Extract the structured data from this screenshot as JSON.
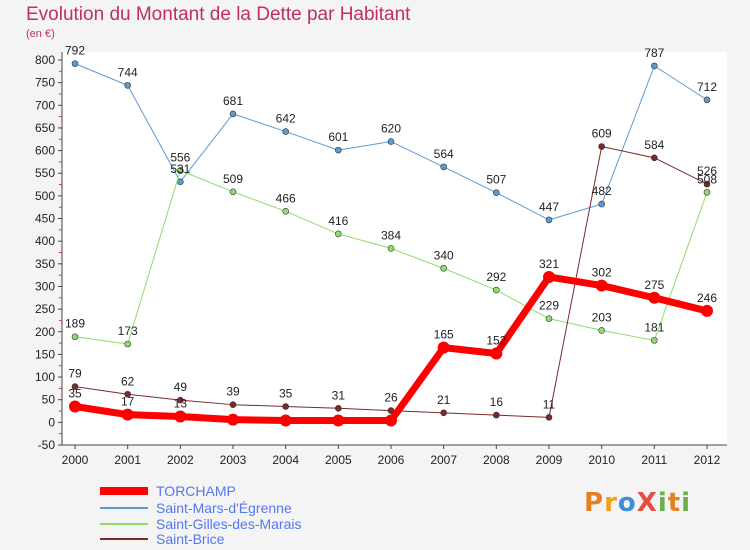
{
  "title": "Evolution du Montant de la Dette par Habitant",
  "unit_label": "(en €)",
  "brand": {
    "text": "ProXiti",
    "letters": [
      "P",
      "r",
      "o",
      "X",
      "i",
      "t",
      "i"
    ],
    "letter_colors": [
      "#e67e22",
      "#f0a020",
      "#3a8fd8",
      "#e74c3c",
      "#6ab04c",
      "#e67e22",
      "#6ab04c"
    ]
  },
  "chart_data": {
    "type": "line",
    "title": "Evolution du Montant de la Dette par Habitant",
    "ylabel": "(en €)",
    "xlabel": "",
    "x": [
      "2000",
      "2001",
      "2002",
      "2003",
      "2004",
      "2005",
      "2006",
      "2007",
      "2008",
      "2009",
      "2010",
      "2011",
      "2012"
    ],
    "ylim": [
      -50,
      800
    ],
    "yticks": [
      -50,
      0,
      50,
      100,
      150,
      200,
      250,
      300,
      350,
      400,
      450,
      500,
      550,
      600,
      650,
      700,
      750,
      800
    ],
    "grid": false,
    "legend": "bottom-left",
    "series": [
      {
        "name": "TORCHAMP",
        "values": [
          35,
          17,
          13,
          6,
          4,
          4,
          4,
          165,
          152,
          321,
          302,
          275,
          246
        ],
        "labels": [
          "35",
          "17",
          "13",
          "",
          "",
          "",
          "",
          "165",
          "152",
          "321",
          "302",
          "275",
          "246"
        ],
        "color": "#ff0000",
        "width": 7
      },
      {
        "name": "Saint-Mars-d'Égrenne",
        "values": [
          792,
          744,
          531,
          681,
          642,
          601,
          620,
          564,
          507,
          447,
          482,
          787,
          712
        ],
        "labels": [
          "792",
          "744",
          "531",
          "681",
          "642",
          "601",
          "620",
          "564",
          "507",
          "447",
          "482",
          "787",
          "712"
        ],
        "color": "#5b9bd5",
        "width": 1
      },
      {
        "name": "Saint-Gilles-des-Marais",
        "values": [
          189,
          173,
          556,
          509,
          466,
          416,
          384,
          340,
          292,
          229,
          203,
          181,
          508
        ],
        "labels": [
          "189",
          "173",
          "556",
          "509",
          "466",
          "416",
          "384",
          "340",
          "292",
          "229",
          "203",
          "181",
          "508"
        ],
        "color": "#8edc6a",
        "width": 1
      },
      {
        "name": "Saint-Brice",
        "values": [
          79,
          62,
          49,
          39,
          35,
          31,
          26,
          21,
          16,
          11,
          609,
          584,
          526
        ],
        "labels": [
          "79",
          "62",
          "49",
          "39",
          "35",
          "31",
          "26",
          "21",
          "16",
          "11",
          "609",
          "584",
          "526"
        ],
        "color": "#7b2a2a",
        "width": 1
      }
    ]
  }
}
